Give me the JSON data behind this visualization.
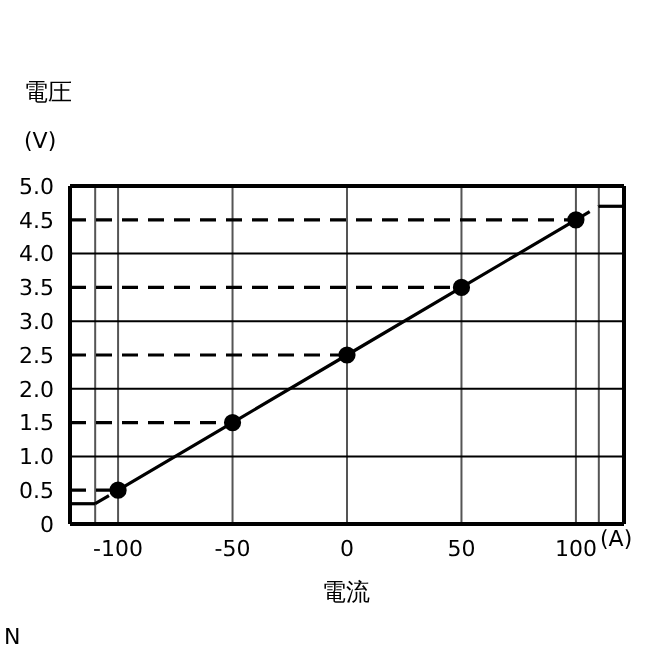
{
  "chart_data": {
    "type": "line",
    "ylabel": "電圧",
    "xlabel": "電流",
    "annotations": [
      "(V)",
      "(A)",
      "N"
    ],
    "xlim": [
      -121,
      121
    ],
    "xticks": [
      {
        "value": -110,
        "label": null
      },
      -100,
      -50,
      0,
      50,
      100,
      {
        "value": 110,
        "label": null
      }
    ],
    "ylim": [
      0,
      5
    ],
    "yticks": [
      0,
      0.5,
      {
        "value": 1,
        "label": "1.0"
      },
      1.5,
      {
        "value": 2,
        "label": "2.0"
      },
      2.5,
      {
        "value": 3,
        "label": "3.0"
      },
      3.5,
      {
        "value": 4,
        "label": "4.0"
      },
      4.5,
      {
        "value": 5,
        "label": "5.0"
      }
    ],
    "grid": "x",
    "ref_lines": [
      {
        "axis": "y",
        "value": 1,
        "color": "#000000"
      },
      {
        "axis": "y",
        "value": 2,
        "color": "#000000"
      },
      {
        "axis": "y",
        "value": 3,
        "color": "#000000"
      },
      {
        "axis": "y",
        "value": 4,
        "color": "#000000"
      }
    ],
    "series": [
      {
        "color": "#000000",
        "x": [
          -100,
          -50,
          0,
          50,
          100
        ],
        "values": [
          0.5,
          1.5,
          2.5,
          3.5,
          4.5
        ],
        "marker": "circle",
        "line_style": "solid"
      },
      {
        "color": "#000000",
        "x": [
          -121,
          -110
        ],
        "values": [
          0.3,
          0.3
        ],
        "marker": "none",
        "line_style": "solid"
      },
      {
        "color": "#000000",
        "x": [
          -110,
          -100
        ],
        "values": [
          0.3,
          0.5
        ],
        "marker": "none",
        "line_style": "dashed"
      },
      {
        "color": "#000000",
        "x": [
          100,
          110
        ],
        "values": [
          4.5,
          4.7
        ],
        "marker": "none",
        "line_style": "dashed"
      },
      {
        "color": "#000000",
        "x": [
          110,
          121
        ],
        "values": [
          4.7,
          4.7
        ],
        "marker": "none",
        "line_style": "solid"
      },
      {
        "color": "#000000",
        "x": [
          -121,
          -100
        ],
        "values": [
          0.5,
          0.5
        ],
        "marker": "none",
        "line_style": "dashed"
      },
      {
        "color": "#000000",
        "x": [
          -121,
          -50
        ],
        "values": [
          1.5,
          1.5
        ],
        "marker": "none",
        "line_style": "dashed"
      },
      {
        "color": "#000000",
        "x": [
          -121,
          0
        ],
        "values": [
          2.5,
          2.5
        ],
        "marker": "none",
        "line_style": "dashed"
      },
      {
        "color": "#000000",
        "x": [
          -121,
          50
        ],
        "values": [
          3.5,
          3.5
        ],
        "marker": "none",
        "line_style": "dashed"
      },
      {
        "color": "#000000",
        "x": [
          -121,
          100
        ],
        "values": [
          4.5,
          4.5
        ],
        "marker": "none",
        "line_style": "dashed"
      }
    ]
  }
}
